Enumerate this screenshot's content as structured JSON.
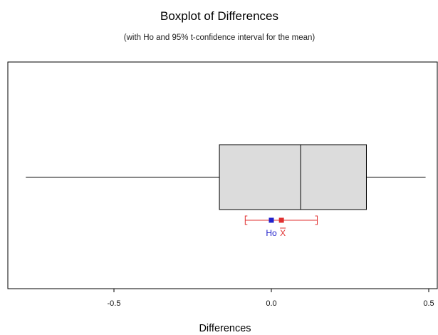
{
  "chart_data": {
    "type": "boxplot",
    "title": "Boxplot of Differences",
    "subtitle": "(with Ho and 95% t-confidence interval for the mean)",
    "xlabel": "Differences",
    "ylabel": "",
    "xlim": [
      -0.83,
      0.5
    ],
    "ticks": [
      {
        "value": -0.5,
        "label": "-0.5"
      },
      {
        "value": 0.0,
        "label": "0.0"
      },
      {
        "value": 0.5,
        "label": "0.5"
      }
    ],
    "grid": false,
    "box": {
      "whisker_low": -0.78,
      "q1": -0.165,
      "median": 0.093,
      "q3": 0.302,
      "whisker_high": 0.49
    },
    "confidence_interval": {
      "low": -0.083,
      "high": 0.146,
      "mean": 0.032
    },
    "ho": {
      "value": 0.0,
      "label": "Ho"
    },
    "mean_label": "X",
    "colors": {
      "box_fill": "#dcdcdc",
      "box_stroke": "#000000",
      "ci": "#e03030",
      "ho": "#2222cc"
    }
  }
}
